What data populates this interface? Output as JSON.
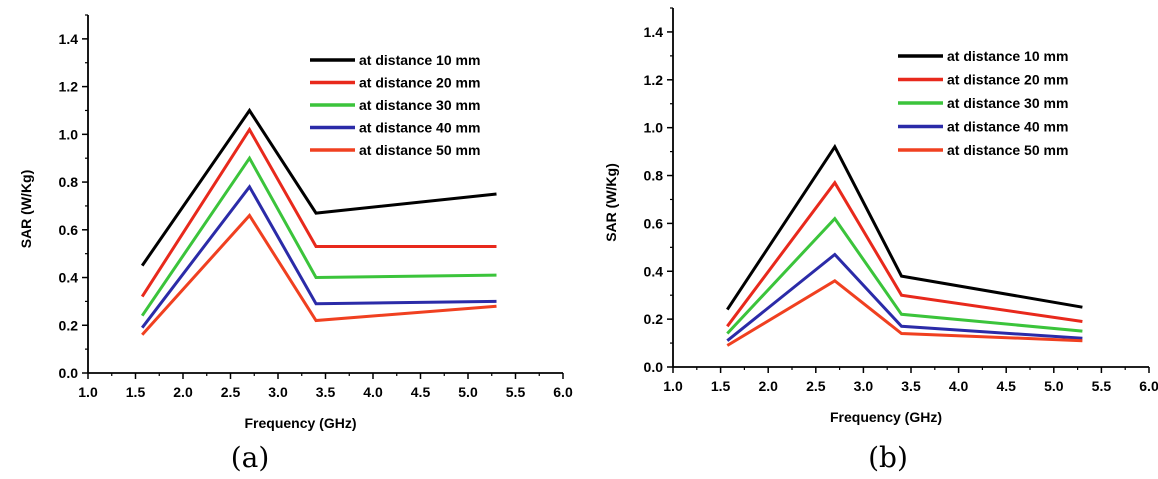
{
  "chart_data": [
    {
      "type": "line",
      "caption": "(a)",
      "xlabel": "Frequency (GHz)",
      "ylabel": "SAR (W/Kg)",
      "xlim": [
        1.0,
        6.0
      ],
      "ylim": [
        0.0,
        1.5
      ],
      "xticks": [
        "1.0",
        "1.5",
        "2.0",
        "2.5",
        "3.0",
        "3.5",
        "4.0",
        "4.5",
        "5.0",
        "5.5",
        "6.0"
      ],
      "yticks": [
        "0.0",
        "0.2",
        "0.4",
        "0.6",
        "0.8",
        "1.0",
        "1.2",
        "1.4"
      ],
      "legend_position": "top-right",
      "x": [
        1.57,
        2.7,
        3.4,
        5.3
      ],
      "series": [
        {
          "name": "at distance 10 mm",
          "color": "#000000",
          "values": [
            0.45,
            1.1,
            0.67,
            0.75
          ]
        },
        {
          "name": "at distance 20 mm",
          "color": "#e8291c",
          "values": [
            0.32,
            1.02,
            0.53,
            0.53
          ]
        },
        {
          "name": "at distance 30 mm",
          "color": "#3bc43b",
          "values": [
            0.24,
            0.9,
            0.4,
            0.41
          ]
        },
        {
          "name": "at distance 40 mm",
          "color": "#2b2ba8",
          "values": [
            0.19,
            0.78,
            0.29,
            0.3
          ]
        },
        {
          "name": "at distance 50 mm",
          "color": "#f04020",
          "values": [
            0.16,
            0.66,
            0.22,
            0.28
          ]
        }
      ]
    },
    {
      "type": "line",
      "caption": "(b)",
      "xlabel": "Frequency (GHz)",
      "ylabel": "SAR (W/Kg)",
      "xlim": [
        1.0,
        6.0
      ],
      "ylim": [
        0.0,
        1.5
      ],
      "xticks": [
        "1.0",
        "1.5",
        "2.0",
        "2.5",
        "3.0",
        "3.5",
        "4.0",
        "4.5",
        "5.0",
        "5.5",
        "6.0"
      ],
      "yticks": [
        "0.0",
        "0.2",
        "0.4",
        "0.6",
        "0.8",
        "1.0",
        "1.2",
        "1.4"
      ],
      "legend_position": "top-right",
      "x": [
        1.57,
        2.7,
        3.4,
        5.3
      ],
      "series": [
        {
          "name": "at distance 10 mm",
          "color": "#000000",
          "values": [
            0.24,
            0.92,
            0.38,
            0.25
          ]
        },
        {
          "name": "at distance 20 mm",
          "color": "#e8291c",
          "values": [
            0.17,
            0.77,
            0.3,
            0.19
          ]
        },
        {
          "name": "at distance 30 mm",
          "color": "#3bc43b",
          "values": [
            0.14,
            0.62,
            0.22,
            0.15
          ]
        },
        {
          "name": "at distance 40 mm",
          "color": "#2b2ba8",
          "values": [
            0.11,
            0.47,
            0.17,
            0.12
          ]
        },
        {
          "name": "at distance 50 mm",
          "color": "#f04020",
          "values": [
            0.09,
            0.36,
            0.14,
            0.11
          ]
        }
      ]
    }
  ]
}
